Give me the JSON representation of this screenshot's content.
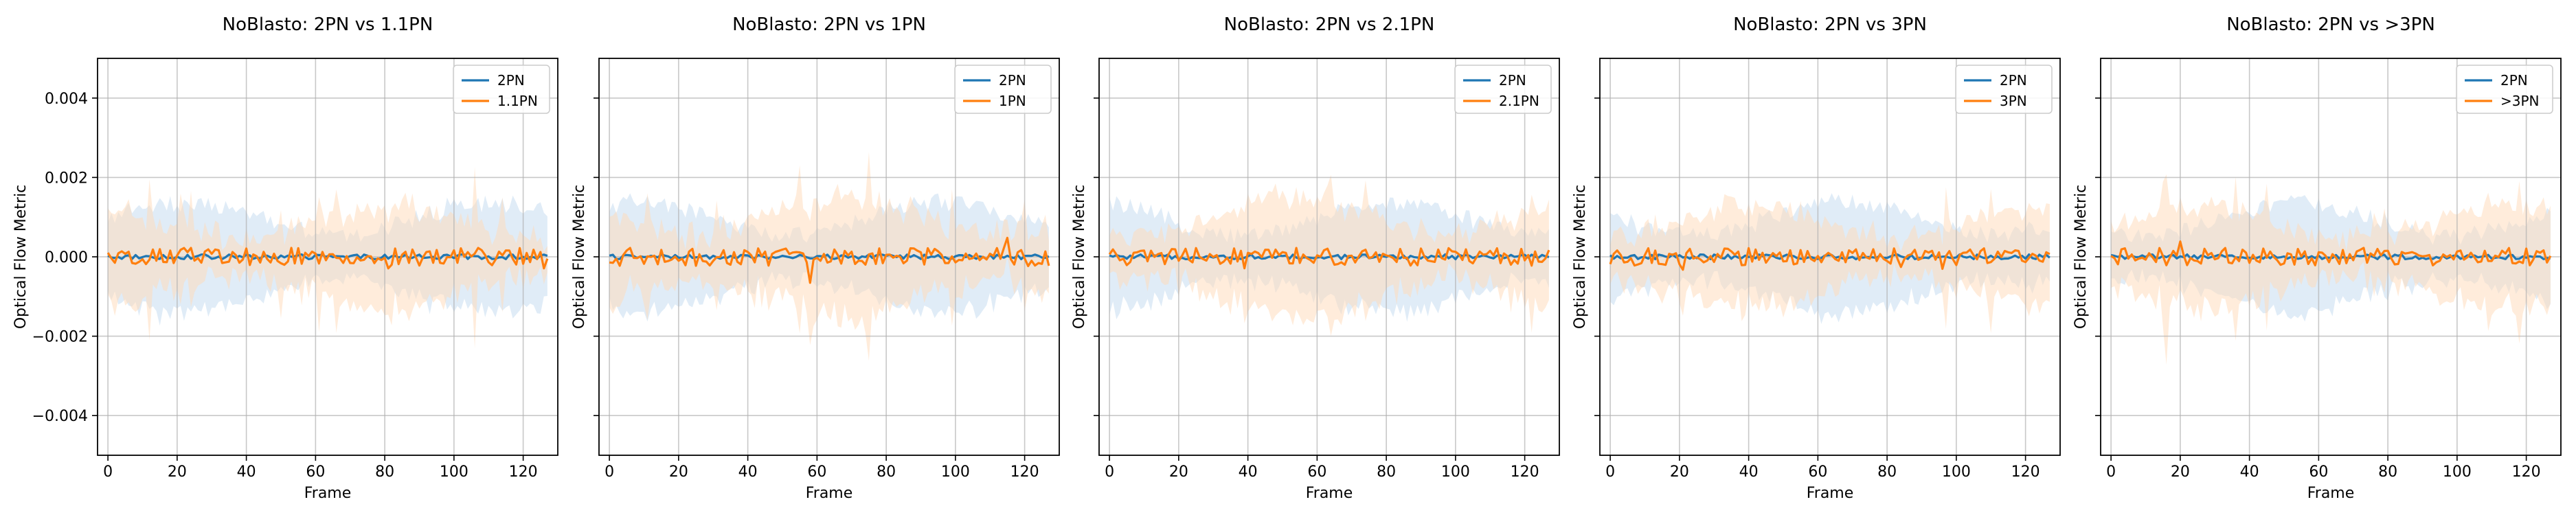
{
  "figure": {
    "ylabel": "Optical Flow Metric",
    "xlabel": "Frame"
  },
  "colors": {
    "series_a": "#1f77b4",
    "series_b": "#ff7f0e",
    "band_a": "#cfe2f3",
    "band_b": "#ffd9b8",
    "grid": "#b0b0b0"
  },
  "chart_data": [
    {
      "type": "line",
      "title": "NoBlasto: 2PN vs 1.1PN",
      "xlabel": "Frame",
      "ylabel": "Optical Flow Metric",
      "xlim": [
        -3,
        130
      ],
      "ylim": [
        -0.005,
        0.005
      ],
      "xticks": [
        "0",
        "20",
        "40",
        "60",
        "80",
        "100",
        "120"
      ],
      "yticks": [
        "−0.004",
        "−0.002",
        "0.000",
        "0.002",
        "0.004"
      ],
      "grid": true,
      "legend": "top-right",
      "series": [
        {
          "name": "2PN",
          "mean": 0.0,
          "band": 0.0012
        },
        {
          "name": "1.1PN",
          "mean": 0.0,
          "band": 0.0011
        }
      ]
    },
    {
      "type": "line",
      "title": "NoBlasto: 2PN vs 1PN",
      "xlabel": "Frame",
      "ylabel": "Optical Flow Metric",
      "xlim": [
        -3,
        130
      ],
      "ylim": [
        -0.005,
        0.005
      ],
      "xticks": [
        "0",
        "20",
        "40",
        "60",
        "80",
        "100",
        "120"
      ],
      "yticks": [
        "−0.004",
        "−0.002",
        "0.000",
        "0.002",
        "0.004"
      ],
      "grid": true,
      "legend": "top-right",
      "series": [
        {
          "name": "2PN",
          "mean": 0.0,
          "band": 0.0012
        },
        {
          "name": "1PN",
          "mean": 0.0,
          "band": 0.0013
        }
      ]
    },
    {
      "type": "line",
      "title": "NoBlasto: 2PN vs 2.1PN",
      "xlabel": "Frame",
      "ylabel": "Optical Flow Metric",
      "xlim": [
        -3,
        130
      ],
      "ylim": [
        -0.005,
        0.005
      ],
      "xticks": [
        "0",
        "20",
        "40",
        "60",
        "80",
        "100",
        "120"
      ],
      "yticks": [
        "−0.004",
        "−0.002",
        "0.000",
        "0.002",
        "0.004"
      ],
      "grid": true,
      "legend": "top-right",
      "series": [
        {
          "name": "2PN",
          "mean": 0.0,
          "band": 0.0012
        },
        {
          "name": "2.1PN",
          "mean": 0.0,
          "band": 0.0013
        }
      ]
    },
    {
      "type": "line",
      "title": "NoBlasto: 2PN vs 3PN",
      "xlabel": "Frame",
      "ylabel": "Optical Flow Metric",
      "xlim": [
        -3,
        130
      ],
      "ylim": [
        -0.005,
        0.005
      ],
      "xticks": [
        "0",
        "20",
        "40",
        "60",
        "80",
        "100",
        "120"
      ],
      "yticks": [
        "−0.004",
        "−0.002",
        "0.000",
        "0.002",
        "0.004"
      ],
      "grid": true,
      "legend": "top-right",
      "series": [
        {
          "name": "2PN",
          "mean": 0.0,
          "band": 0.0012
        },
        {
          "name": "3PN",
          "mean": 0.0,
          "band": 0.0011
        }
      ]
    },
    {
      "type": "line",
      "title": "NoBlasto: 2PN vs >3PN",
      "xlabel": "Frame",
      "ylabel": "Optical Flow Metric",
      "xlim": [
        -3,
        130
      ],
      "ylim": [
        -0.005,
        0.005
      ],
      "xticks": [
        "0",
        "20",
        "40",
        "60",
        "80",
        "100",
        "120"
      ],
      "yticks": [
        "−0.004",
        "−0.002",
        "0.000",
        "0.002",
        "0.004"
      ],
      "grid": true,
      "legend": "top-right",
      "series": [
        {
          "name": "2PN",
          "mean": 0.0,
          "band": 0.0012
        },
        {
          "name": ">3PN",
          "mean": 0.0,
          "band": 0.0011
        }
      ]
    }
  ]
}
